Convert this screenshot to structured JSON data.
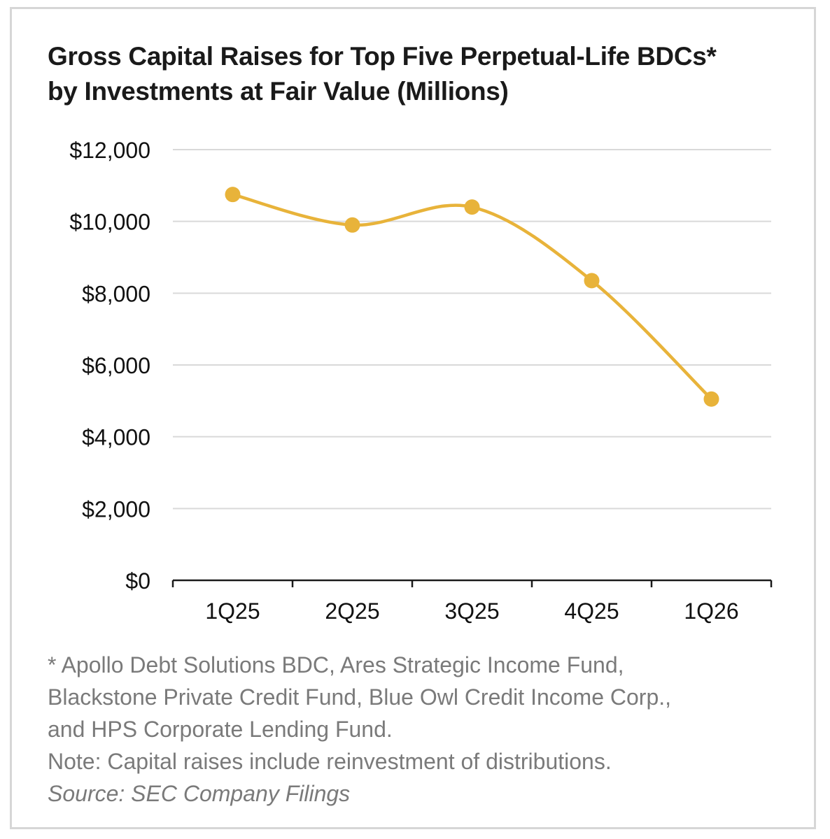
{
  "title_line1": "Gross Capital Raises for Top Five Perpetual-Life BDCs*",
  "title_line2": "by Investments at Fair Value (Millions)",
  "footnote_lines": [
    "* Apollo Debt Solutions BDC, Ares Strategic Income Fund,",
    "Blackstone Private Credit Fund, Blue Owl Credit Income Corp.,",
    "and HPS Corporate Lending Fund."
  ],
  "note": "Note: Capital raises include reinvestment of distributions.",
  "source": "Source: SEC Company Filings",
  "colors": {
    "line": "#e8b33a",
    "grid": "#d9d9d9",
    "axis": "#1a1a1a"
  },
  "chart_data": {
    "type": "line",
    "title": "Gross Capital Raises for Top Five Perpetual-Life BDCs* by Investments at Fair Value (Millions)",
    "categories": [
      "1Q25",
      "2Q25",
      "3Q25",
      "4Q25",
      "1Q26"
    ],
    "values": [
      10750,
      9900,
      10400,
      8350,
      5050
    ],
    "ylim": [
      0,
      12000
    ],
    "yticks": [
      0,
      2000,
      4000,
      6000,
      8000,
      10000,
      12000
    ],
    "ytick_labels": [
      "$0",
      "$2,000",
      "$4,000",
      "$6,000",
      "$8,000",
      "$10,000",
      "$12,000"
    ],
    "xlabel": "",
    "ylabel": "",
    "grid": true,
    "legend": "none",
    "smooth": true,
    "markers": true
  }
}
